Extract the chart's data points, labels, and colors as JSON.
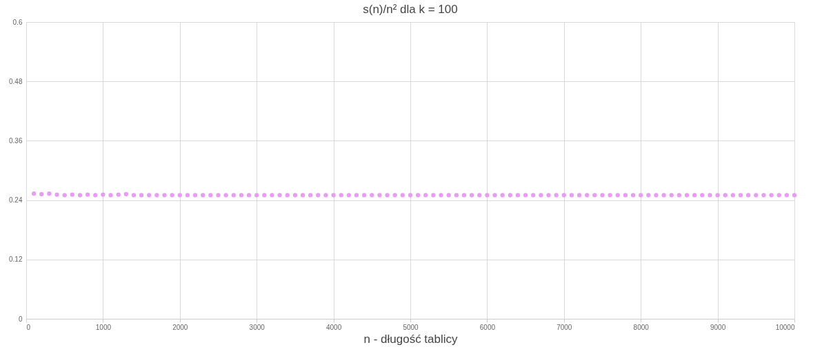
{
  "chart_data": {
    "type": "scatter",
    "title": "s(n)/n² dla k = 100",
    "xlabel": "n - długość tablicy",
    "x": [
      100,
      200,
      300,
      400,
      500,
      600,
      700,
      800,
      900,
      1000,
      1100,
      1200,
      1300,
      1400,
      1500,
      1600,
      1700,
      1800,
      1900,
      2000,
      2100,
      2200,
      2300,
      2400,
      2500,
      2600,
      2700,
      2800,
      2900,
      3000,
      3100,
      3200,
      3300,
      3400,
      3500,
      3600,
      3700,
      3800,
      3900,
      4000,
      4100,
      4200,
      4300,
      4400,
      4500,
      4600,
      4700,
      4800,
      4900,
      5000,
      5100,
      5200,
      5300,
      5400,
      5500,
      5600,
      5700,
      5800,
      5900,
      6000,
      6100,
      6200,
      6300,
      6400,
      6500,
      6600,
      6700,
      6800,
      6900,
      7000,
      7100,
      7200,
      7300,
      7400,
      7500,
      7600,
      7700,
      7800,
      7900,
      8000,
      8100,
      8200,
      8300,
      8400,
      8500,
      8600,
      8700,
      8800,
      8900,
      9000,
      9100,
      9200,
      9300,
      9400,
      9500,
      9600,
      9700,
      9800,
      9900,
      10000
    ],
    "series": [
      {
        "color": "#e69ff0",
        "values": [
          0.253,
          0.252,
          0.253,
          0.251,
          0.25,
          0.251,
          0.25,
          0.251,
          0.25,
          0.251,
          0.25,
          0.251,
          0.252,
          0.25,
          0.25,
          0.25,
          0.25,
          0.25,
          0.25,
          0.25,
          0.25,
          0.25,
          0.25,
          0.25,
          0.25,
          0.25,
          0.25,
          0.25,
          0.25,
          0.25,
          0.25,
          0.25,
          0.25,
          0.25,
          0.25,
          0.25,
          0.25,
          0.25,
          0.25,
          0.25,
          0.25,
          0.25,
          0.25,
          0.25,
          0.25,
          0.25,
          0.25,
          0.25,
          0.25,
          0.25,
          0.25,
          0.25,
          0.25,
          0.25,
          0.25,
          0.25,
          0.25,
          0.25,
          0.25,
          0.25,
          0.25,
          0.25,
          0.25,
          0.25,
          0.25,
          0.25,
          0.25,
          0.25,
          0.25,
          0.25,
          0.25,
          0.25,
          0.25,
          0.25,
          0.25,
          0.25,
          0.25,
          0.25,
          0.25,
          0.25,
          0.25,
          0.25,
          0.25,
          0.25,
          0.25,
          0.25,
          0.25,
          0.25,
          0.25,
          0.25,
          0.25,
          0.25,
          0.25,
          0.25,
          0.25,
          0.25,
          0.25,
          0.25,
          0.25,
          0.25
        ]
      }
    ],
    "xlim": [
      0,
      10000
    ],
    "xticks": [
      0,
      1000,
      2000,
      3000,
      4000,
      5000,
      6000,
      7000,
      8000,
      9000,
      10000
    ],
    "ylim": [
      0,
      0.6
    ],
    "yticks": [
      0,
      0.12,
      0.24,
      0.36,
      0.48,
      0.6
    ],
    "grid": true,
    "marker": "circle",
    "legend": false
  }
}
